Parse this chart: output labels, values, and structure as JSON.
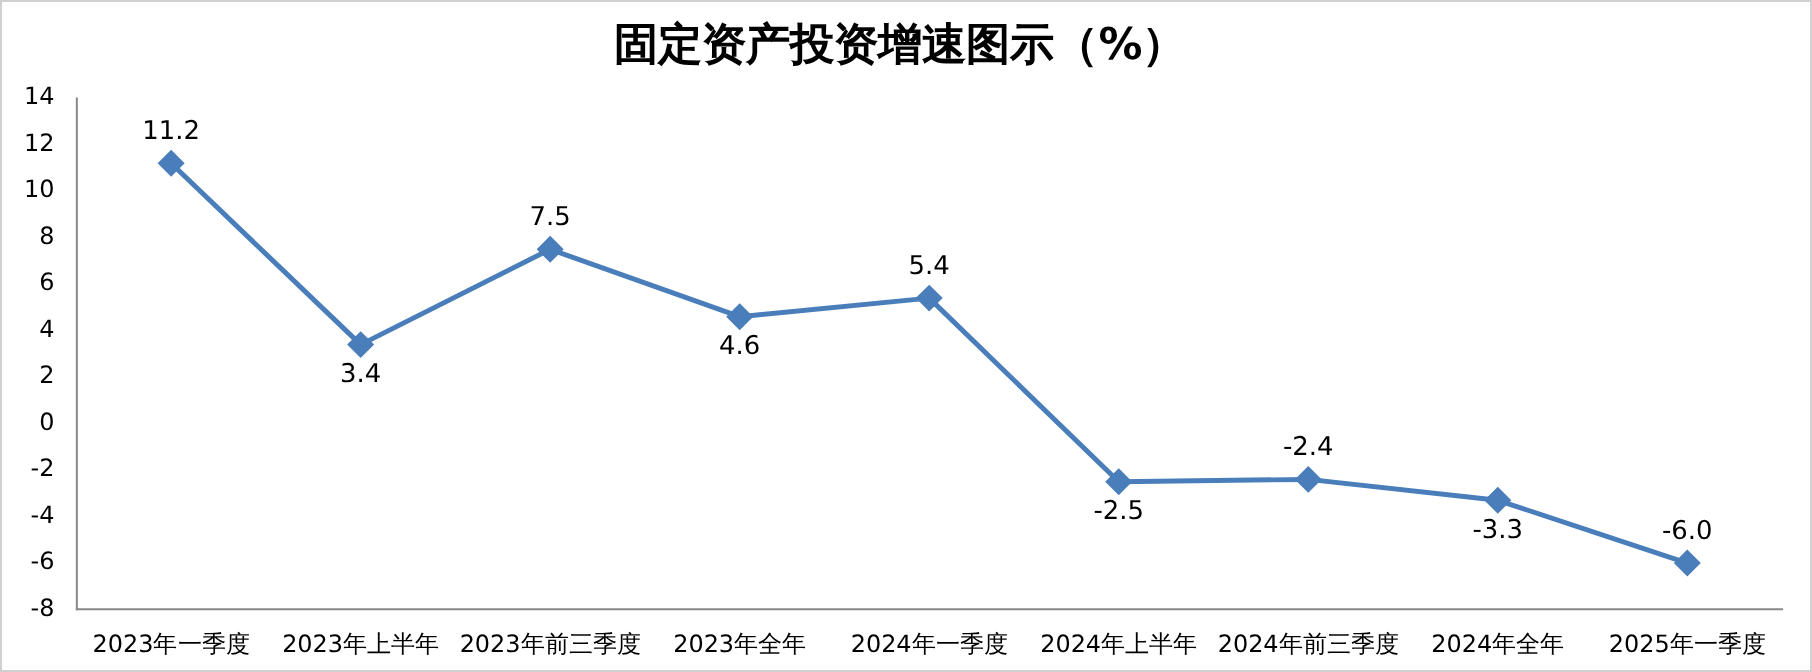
{
  "chart_data": {
    "type": "line",
    "title": "固定资产投资增速图示（%）",
    "categories": [
      "2023年一季度",
      "2023年上半年",
      "2023年前三季度",
      "2023年全年",
      "2024年一季度",
      "2024年上半年",
      "2024年前三季度",
      "2024年全年",
      "2025年一季度"
    ],
    "series": [
      {
        "color": "#4a7ebb",
        "values": [
          11.2,
          3.4,
          7.5,
          4.6,
          5.4,
          -2.5,
          -2.4,
          -3.3,
          -6.0
        ],
        "value_labels": [
          "11.2",
          "3.4",
          "7.5",
          "4.6",
          "5.4",
          "-2.5",
          "-2.4",
          "-3.3",
          "-6.0"
        ]
      }
    ],
    "ylim": [
      -8,
      14
    ],
    "yticks": [
      -8,
      -6,
      -4,
      -2,
      0,
      2,
      4,
      6,
      8,
      10,
      12,
      14
    ],
    "grid": false,
    "legend": false,
    "marker": "diamond",
    "line_style": "solid"
  }
}
